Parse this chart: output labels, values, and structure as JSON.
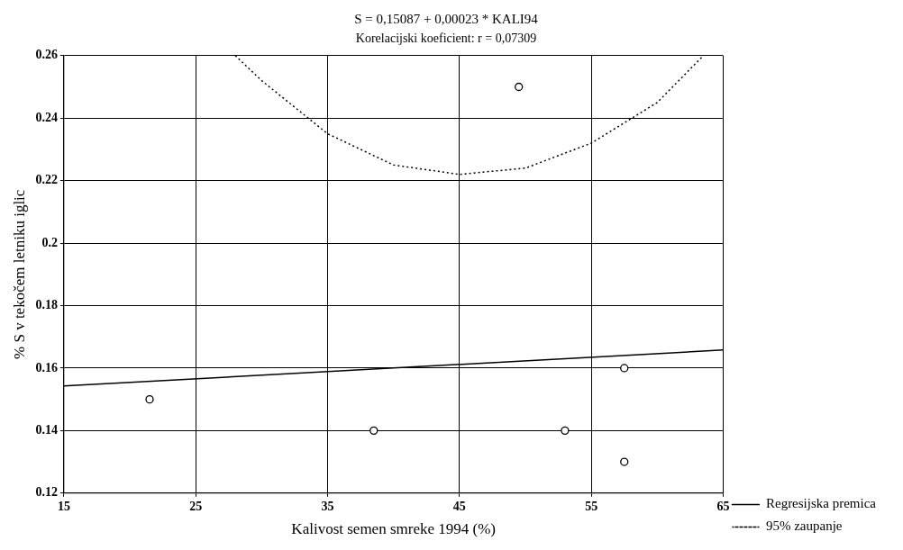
{
  "chart_data": {
    "type": "scatter",
    "title": "S = 0,15087 + 0,00023 * KALI94",
    "subtitle": "Korelacijski koeficient: r = 0,07309",
    "xlabel": "Kalivost semen smreke 1994 (%)",
    "ylabel": "% S v tekočem letniku iglic",
    "xlim": [
      15,
      65
    ],
    "xticks": [
      15,
      25,
      35,
      45,
      55,
      65
    ],
    "ylim": [
      0.12,
      0.26
    ],
    "yticks": [
      0.12,
      0.14,
      0.16,
      0.18,
      0.2,
      0.22,
      0.24,
      0.26
    ],
    "grid": true,
    "legend": "right",
    "series": [
      {
        "marker": "circle",
        "color": "#000000",
        "x": [
          21.5,
          38.5,
          49.5,
          53,
          57.5,
          57.5
        ],
        "values": [
          0.15,
          0.14,
          0.25,
          0.14,
          0.16,
          0.13
        ]
      },
      {
        "type": "line",
        "name": "Regresijska premica",
        "color": "#000000",
        "line_style": "solid",
        "x": [
          15,
          65
        ],
        "values": [
          0.1543,
          0.1658
        ]
      },
      {
        "type": "line",
        "name": "95% zaupanje",
        "color": "#000000",
        "line_style": "dotted",
        "x": [
          28,
          30,
          35,
          40,
          45,
          50,
          55,
          60,
          63.5
        ],
        "values": [
          0.26,
          0.252,
          0.235,
          0.225,
          0.222,
          0.224,
          0.232,
          0.245,
          0.26
        ]
      }
    ]
  }
}
